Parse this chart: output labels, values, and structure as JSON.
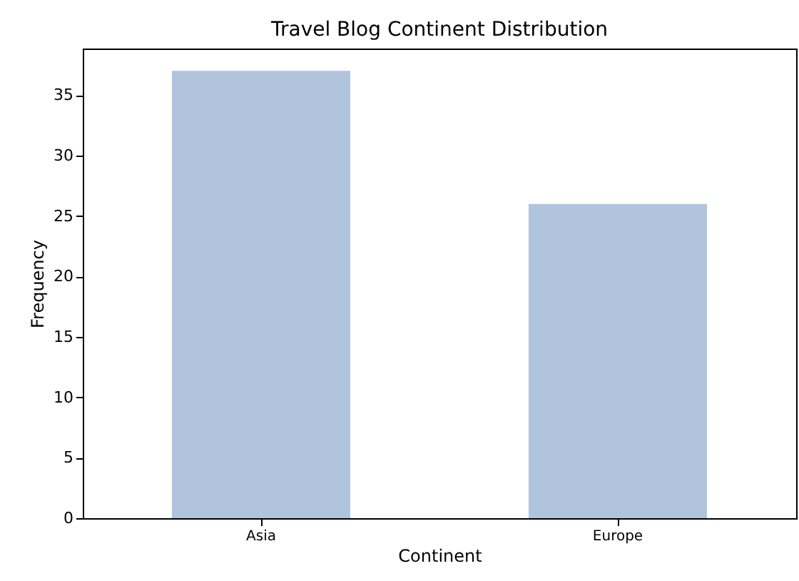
{
  "chart_data": {
    "type": "bar",
    "title": "Travel Blog Continent Distribution",
    "xlabel": "Continent",
    "ylabel": "Frequency",
    "categories": [
      "Asia",
      "Europe"
    ],
    "values": [
      37,
      26
    ],
    "color": "#b0c4de",
    "ylim": [
      0,
      38.85
    ],
    "yticks": [
      0,
      5,
      10,
      15,
      20,
      25,
      30,
      35
    ],
    "grid": false
  }
}
